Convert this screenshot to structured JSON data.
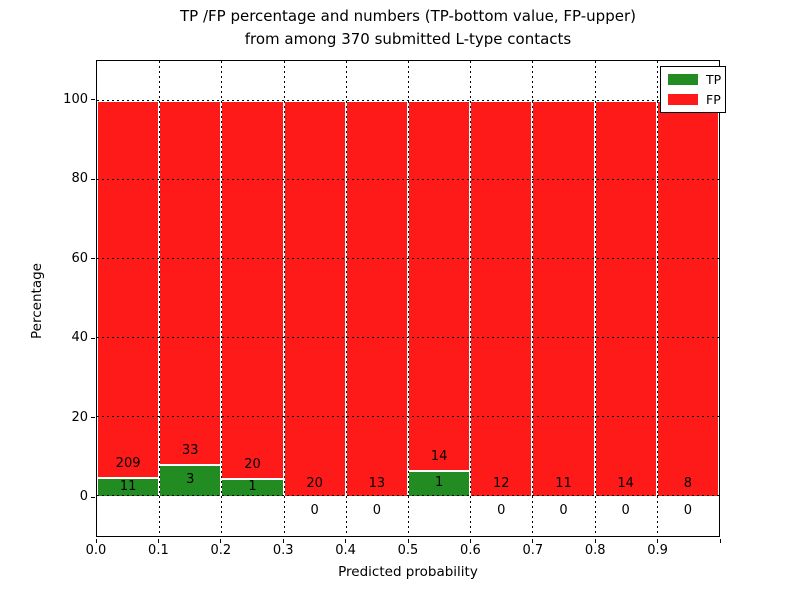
{
  "title": {
    "line1": "TP /FP percentage and numbers (TP-bottom value, FP-upper)",
    "line2": "from among 370 submitted L-type contacts"
  },
  "axes": {
    "xlabel": "Predicted probability",
    "ylabel": "Percentage",
    "x_tick_labels": [
      "0.0",
      "0.1",
      "0.2",
      "0.3",
      "0.4",
      "0.5",
      "0.6",
      "0.7",
      "0.8",
      "0.9"
    ],
    "y_tick_labels": [
      "0",
      "20",
      "40",
      "60",
      "80",
      "100"
    ],
    "y_tick_values": [
      0,
      20,
      40,
      60,
      80,
      100
    ],
    "ylim": [
      -10,
      110
    ],
    "xlim": [
      0.0,
      1.0
    ]
  },
  "legend": {
    "position": "upper right",
    "items": [
      {
        "label": "TP",
        "color": "#228b22"
      },
      {
        "label": "FP",
        "color": "#ff1a1a"
      }
    ]
  },
  "colors": {
    "tp": "#228b22",
    "fp": "#ff1a1a",
    "grid": "#000000",
    "background": "#ffffff",
    "bar_edge": "#ffffff"
  },
  "chart_data": {
    "type": "bar",
    "stacked": true,
    "normalized": "each bin stacks to 100%",
    "title": "TP /FP percentage and numbers (TP-bottom value, FP-upper) from among 370 submitted L-type contacts",
    "xlabel": "Predicted probability",
    "ylabel": "Percentage",
    "total_contacts": 370,
    "bin_edges": [
      0.0,
      0.1,
      0.2,
      0.3,
      0.4,
      0.5,
      0.6,
      0.7,
      0.8,
      0.9,
      1.0
    ],
    "categories": [
      "0.0-0.1",
      "0.1-0.2",
      "0.2-0.3",
      "0.3-0.4",
      "0.4-0.5",
      "0.5-0.6",
      "0.6-0.7",
      "0.7-0.8",
      "0.8-0.9",
      "0.9-1.0"
    ],
    "series": [
      {
        "name": "TP",
        "color": "#228b22",
        "counts": [
          11,
          3,
          1,
          0,
          0,
          1,
          0,
          0,
          0,
          0
        ],
        "percent": [
          5.0,
          8.33,
          4.76,
          0,
          0,
          6.67,
          0,
          0,
          0,
          0
        ]
      },
      {
        "name": "FP",
        "color": "#ff1a1a",
        "counts": [
          209,
          33,
          20,
          20,
          13,
          14,
          12,
          11,
          14,
          8
        ],
        "percent": [
          95.0,
          91.67,
          95.24,
          100,
          100,
          93.33,
          100,
          100,
          100,
          100
        ]
      }
    ],
    "ylim": [
      -10,
      110
    ],
    "grid": "dotted black, on top of bars",
    "legend_position": "upper right"
  }
}
